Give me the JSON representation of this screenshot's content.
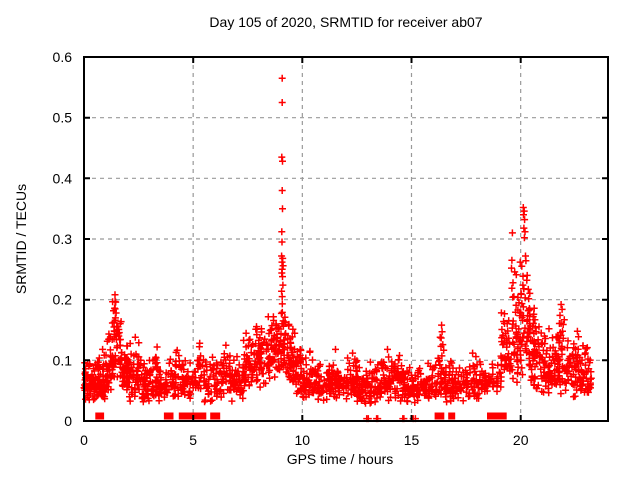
{
  "chart_data": {
    "type": "scatter",
    "title": "Day 105 of 2020, SRMTID for receiver ab07",
    "xlabel": "GPS time / hours",
    "ylabel": "SRMTID / TECUs",
    "xlim": [
      0,
      24
    ],
    "ylim": [
      0,
      0.6
    ],
    "xticks": [
      0,
      5,
      10,
      15,
      20
    ],
    "yticks": [
      0,
      0.1,
      0.2,
      0.3,
      0.4,
      0.5,
      0.6
    ],
    "grid": true,
    "legend": "none",
    "colors": {
      "marker": "#ff0000",
      "grid": "#999999",
      "border": "#000000",
      "background": "#ffffff",
      "text": "#000000"
    },
    "series": [
      {
        "name": "SRMTID",
        "marker": "plus",
        "color": "#ff0000",
        "outlier_points": [
          [
            9.08,
            0.565
          ],
          [
            9.08,
            0.525
          ],
          [
            9.06,
            0.435
          ],
          [
            9.09,
            0.428
          ],
          [
            9.08,
            0.38
          ],
          [
            9.09,
            0.35
          ],
          [
            9.06,
            0.312
          ],
          [
            9.07,
            0.295
          ],
          [
            9.05,
            0.272
          ],
          [
            9.1,
            0.268
          ],
          [
            9.07,
            0.262
          ],
          [
            9.12,
            0.256
          ],
          [
            9.08,
            0.25
          ],
          [
            9.06,
            0.244
          ],
          [
            9.09,
            0.238
          ],
          [
            9.11,
            0.224
          ],
          [
            9.05,
            0.214
          ],
          [
            9.08,
            0.205
          ],
          [
            20.12,
            0.352
          ],
          [
            20.16,
            0.346
          ],
          [
            20.13,
            0.34
          ],
          [
            20.18,
            0.332
          ],
          [
            20.15,
            0.318
          ],
          [
            20.2,
            0.312
          ],
          [
            20.17,
            0.302
          ],
          [
            19.62,
            0.31
          ],
          [
            19.6,
            0.265
          ],
          [
            19.58,
            0.252
          ],
          [
            20.22,
            0.272
          ],
          [
            20.24,
            0.264
          ],
          [
            19.98,
            0.262
          ],
          [
            20.05,
            0.255
          ],
          [
            20.3,
            0.24
          ],
          [
            20.28,
            0.232
          ],
          [
            19.65,
            0.228
          ],
          [
            20.1,
            0.224
          ],
          [
            20.35,
            0.217
          ],
          [
            20.02,
            0.21
          ],
          [
            1.42,
            0.208
          ],
          [
            1.45,
            0.196
          ],
          [
            1.4,
            0.186
          ],
          [
            1.47,
            0.178
          ],
          [
            1.44,
            0.17
          ],
          [
            1.38,
            0.163
          ],
          [
            1.5,
            0.156
          ],
          [
            2.35,
            0.138
          ],
          [
            3.35,
            0.122
          ],
          [
            0.85,
            0.118
          ],
          [
            5.3,
            0.128
          ],
          [
            6.5,
            0.125
          ],
          [
            10.35,
            0.115
          ],
          [
            11.52,
            0.118
          ],
          [
            12.3,
            0.112
          ],
          [
            13.9,
            0.118
          ],
          [
            14.45,
            0.108
          ],
          [
            16.38,
            0.158
          ],
          [
            16.4,
            0.147
          ],
          [
            17.8,
            0.112
          ],
          [
            20.62,
            0.186
          ],
          [
            20.6,
            0.176
          ],
          [
            20.65,
            0.167
          ],
          [
            21.3,
            0.152
          ],
          [
            21.85,
            0.192
          ],
          [
            21.9,
            0.184
          ],
          [
            21.8,
            0.174
          ],
          [
            22.0,
            0.167
          ],
          [
            21.95,
            0.159
          ],
          [
            22.6,
            0.148
          ],
          [
            22.65,
            0.139
          ],
          [
            23.05,
            0.121
          ],
          [
            12.95,
            0.004
          ],
          [
            13.02,
            0.004
          ],
          [
            13.4,
            0.004
          ],
          [
            13.45,
            0.004
          ],
          [
            14.6,
            0.004
          ],
          [
            14.65,
            0.004
          ],
          [
            15.08,
            0.004
          ],
          [
            15.18,
            0.004
          ]
        ],
        "density_bins_t0_t1_n_ymin_ymode_ymax": [
          [
            0.0,
            0.5,
            60,
            0.03,
            0.055,
            0.1
          ],
          [
            0.5,
            1.0,
            60,
            0.03,
            0.06,
            0.115
          ],
          [
            1.0,
            1.3,
            35,
            0.04,
            0.08,
            0.15
          ],
          [
            1.3,
            1.7,
            45,
            0.05,
            0.1,
            0.205
          ],
          [
            1.7,
            2.0,
            35,
            0.04,
            0.08,
            0.14
          ],
          [
            2.0,
            2.6,
            55,
            0.03,
            0.065,
            0.135
          ],
          [
            2.6,
            3.4,
            70,
            0.03,
            0.055,
            0.115
          ],
          [
            3.4,
            4.2,
            60,
            0.03,
            0.05,
            0.11
          ],
          [
            4.2,
            5.0,
            55,
            0.03,
            0.055,
            0.12
          ],
          [
            5.0,
            5.6,
            40,
            0.03,
            0.06,
            0.13
          ],
          [
            5.6,
            6.3,
            45,
            0.03,
            0.05,
            0.11
          ],
          [
            6.3,
            6.7,
            30,
            0.04,
            0.07,
            0.125
          ],
          [
            6.7,
            7.3,
            45,
            0.03,
            0.06,
            0.11
          ],
          [
            7.3,
            7.8,
            45,
            0.04,
            0.08,
            0.15
          ],
          [
            7.8,
            8.4,
            55,
            0.05,
            0.1,
            0.175
          ],
          [
            8.4,
            9.0,
            60,
            0.06,
            0.11,
            0.19
          ],
          [
            9.0,
            9.25,
            30,
            0.07,
            0.12,
            0.2
          ],
          [
            9.25,
            9.7,
            50,
            0.05,
            0.09,
            0.17
          ],
          [
            9.7,
            10.0,
            35,
            0.04,
            0.07,
            0.13
          ],
          [
            10.0,
            10.7,
            55,
            0.03,
            0.06,
            0.115
          ],
          [
            10.7,
            11.5,
            65,
            0.03,
            0.055,
            0.1
          ],
          [
            11.5,
            12.5,
            80,
            0.03,
            0.055,
            0.11
          ],
          [
            12.5,
            13.5,
            80,
            0.025,
            0.05,
            0.1
          ],
          [
            13.5,
            14.5,
            80,
            0.03,
            0.055,
            0.11
          ],
          [
            14.5,
            15.5,
            80,
            0.025,
            0.05,
            0.1
          ],
          [
            15.5,
            16.2,
            50,
            0.03,
            0.05,
            0.1
          ],
          [
            16.2,
            16.5,
            25,
            0.04,
            0.08,
            0.155
          ],
          [
            16.5,
            17.5,
            70,
            0.03,
            0.055,
            0.1
          ],
          [
            17.5,
            18.3,
            55,
            0.03,
            0.06,
            0.11
          ],
          [
            18.3,
            18.6,
            18,
            0.04,
            0.06,
            0.09
          ],
          [
            18.6,
            19.1,
            20,
            0.04,
            0.065,
            0.1
          ],
          [
            19.1,
            19.6,
            45,
            0.05,
            0.1,
            0.2
          ],
          [
            19.6,
            20.0,
            45,
            0.05,
            0.12,
            0.27
          ],
          [
            20.0,
            20.45,
            50,
            0.06,
            0.13,
            0.27
          ],
          [
            20.45,
            21.0,
            55,
            0.04,
            0.09,
            0.19
          ],
          [
            21.0,
            21.7,
            60,
            0.04,
            0.075,
            0.15
          ],
          [
            21.7,
            22.3,
            55,
            0.04,
            0.08,
            0.19
          ],
          [
            22.3,
            23.0,
            60,
            0.03,
            0.07,
            0.14
          ],
          [
            23.0,
            23.25,
            20,
            0.04,
            0.07,
            0.12
          ]
        ]
      },
      {
        "name": "flagged-epochs-at-zero",
        "marker": "filled-square",
        "color": "#ff0000",
        "y_value": 0,
        "hours": [
          0.68,
          0.76,
          3.82,
          3.94,
          4.5,
          4.62,
          4.76,
          4.9,
          5.04,
          5.3,
          5.44,
          5.94,
          6.08,
          16.22,
          16.34,
          16.84,
          18.62,
          18.74,
          18.86,
          18.98,
          19.1,
          19.2
        ]
      }
    ]
  }
}
